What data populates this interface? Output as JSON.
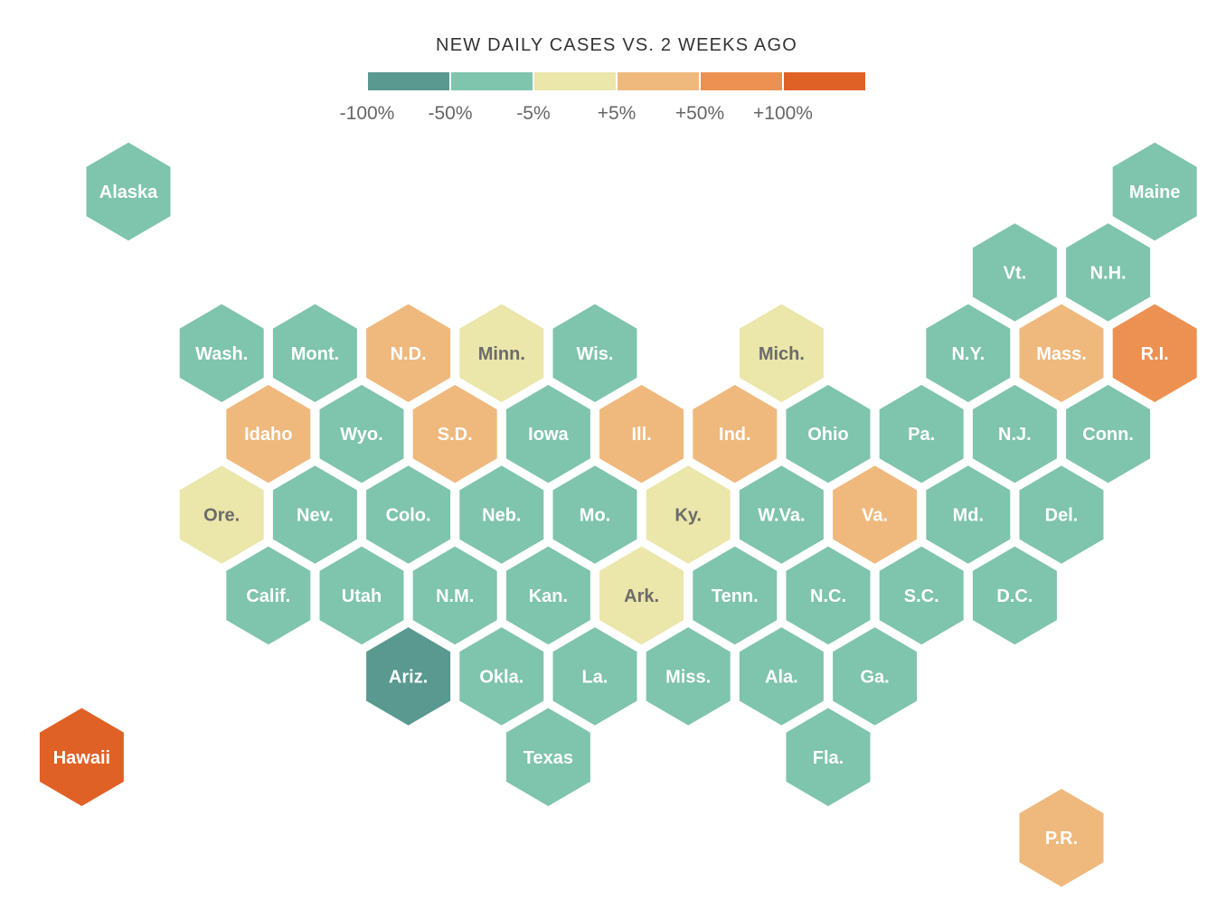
{
  "title": "NEW DAILY CASES VS. 2 WEEKS AGO",
  "colors": {
    "-100%": "#59998f",
    "-50%": "#7fc4ad",
    "-5%": "#ebe6a9",
    "+5%": "#efb97d",
    "+50%": "#ec9152",
    "+100%": "#e06126"
  },
  "legend": {
    "labels": [
      "-100%",
      "-50%",
      "-5%",
      "+5%",
      "+50%",
      "+100%"
    ],
    "swatches": [
      "-100%",
      "-50%",
      "-5%",
      "+5%",
      "+50%",
      "+100%"
    ]
  },
  "states": [
    {
      "label": "Alaska",
      "row": 0,
      "col": 0,
      "bin": "-50%"
    },
    {
      "label": "Maine",
      "row": 0,
      "col": 11,
      "bin": "-50%"
    },
    {
      "label": "Vt.",
      "row": 1,
      "col": 9.5,
      "bin": "-50%"
    },
    {
      "label": "N.H.",
      "row": 1,
      "col": 10.5,
      "bin": "-50%"
    },
    {
      "label": "Wash.",
      "row": 2,
      "col": 1,
      "bin": "-50%"
    },
    {
      "label": "Mont.",
      "row": 2,
      "col": 2,
      "bin": "-50%"
    },
    {
      "label": "N.D.",
      "row": 2,
      "col": 3,
      "bin": "+5%"
    },
    {
      "label": "Minn.",
      "row": 2,
      "col": 4,
      "bin": "-5%"
    },
    {
      "label": "Wis.",
      "row": 2,
      "col": 5,
      "bin": "-50%"
    },
    {
      "label": "Mich.",
      "row": 2,
      "col": 7,
      "bin": "-5%"
    },
    {
      "label": "N.Y.",
      "row": 2,
      "col": 9,
      "bin": "-50%"
    },
    {
      "label": "Mass.",
      "row": 2,
      "col": 10,
      "bin": "+5%"
    },
    {
      "label": "R.I.",
      "row": 2,
      "col": 11,
      "bin": "+50%"
    },
    {
      "label": "Idaho",
      "row": 3,
      "col": 1.5,
      "bin": "+5%"
    },
    {
      "label": "Wyo.",
      "row": 3,
      "col": 2.5,
      "bin": "-50%"
    },
    {
      "label": "S.D.",
      "row": 3,
      "col": 3.5,
      "bin": "+5%"
    },
    {
      "label": "Iowa",
      "row": 3,
      "col": 4.5,
      "bin": "-50%"
    },
    {
      "label": "Ill.",
      "row": 3,
      "col": 5.5,
      "bin": "+5%"
    },
    {
      "label": "Ind.",
      "row": 3,
      "col": 6.5,
      "bin": "+5%"
    },
    {
      "label": "Ohio",
      "row": 3,
      "col": 7.5,
      "bin": "-50%"
    },
    {
      "label": "Pa.",
      "row": 3,
      "col": 8.5,
      "bin": "-50%"
    },
    {
      "label": "N.J.",
      "row": 3,
      "col": 9.5,
      "bin": "-50%"
    },
    {
      "label": "Conn.",
      "row": 3,
      "col": 10.5,
      "bin": "-50%"
    },
    {
      "label": "Ore.",
      "row": 4,
      "col": 1,
      "bin": "-5%"
    },
    {
      "label": "Nev.",
      "row": 4,
      "col": 2,
      "bin": "-50%"
    },
    {
      "label": "Colo.",
      "row": 4,
      "col": 3,
      "bin": "-50%"
    },
    {
      "label": "Neb.",
      "row": 4,
      "col": 4,
      "bin": "-50%"
    },
    {
      "label": "Mo.",
      "row": 4,
      "col": 5,
      "bin": "-50%"
    },
    {
      "label": "Ky.",
      "row": 4,
      "col": 6,
      "bin": "-5%"
    },
    {
      "label": "W.Va.",
      "row": 4,
      "col": 7,
      "bin": "-50%"
    },
    {
      "label": "Va.",
      "row": 4,
      "col": 8,
      "bin": "+5%"
    },
    {
      "label": "Md.",
      "row": 4,
      "col": 9,
      "bin": "-50%"
    },
    {
      "label": "Del.",
      "row": 4,
      "col": 10,
      "bin": "-50%"
    },
    {
      "label": "Calif.",
      "row": 5,
      "col": 1.5,
      "bin": "-50%"
    },
    {
      "label": "Utah",
      "row": 5,
      "col": 2.5,
      "bin": "-50%"
    },
    {
      "label": "N.M.",
      "row": 5,
      "col": 3.5,
      "bin": "-50%"
    },
    {
      "label": "Kan.",
      "row": 5,
      "col": 4.5,
      "bin": "-50%"
    },
    {
      "label": "Ark.",
      "row": 5,
      "col": 5.5,
      "bin": "-5%"
    },
    {
      "label": "Tenn.",
      "row": 5,
      "col": 6.5,
      "bin": "-50%"
    },
    {
      "label": "N.C.",
      "row": 5,
      "col": 7.5,
      "bin": "-50%"
    },
    {
      "label": "S.C.",
      "row": 5,
      "col": 8.5,
      "bin": "-50%"
    },
    {
      "label": "D.C.",
      "row": 5,
      "col": 9.5,
      "bin": "-50%"
    },
    {
      "label": "Ariz.",
      "row": 6,
      "col": 3,
      "bin": "-100%"
    },
    {
      "label": "Okla.",
      "row": 6,
      "col": 4,
      "bin": "-50%"
    },
    {
      "label": "La.",
      "row": 6,
      "col": 5,
      "bin": "-50%"
    },
    {
      "label": "Miss.",
      "row": 6,
      "col": 6,
      "bin": "-50%"
    },
    {
      "label": "Ala.",
      "row": 6,
      "col": 7,
      "bin": "-50%"
    },
    {
      "label": "Ga.",
      "row": 6,
      "col": 8,
      "bin": "-50%"
    },
    {
      "label": "Hawaii",
      "row": 7,
      "col": -0.5,
      "bin": "+100%"
    },
    {
      "label": "Texas",
      "row": 7,
      "col": 4.5,
      "bin": "-50%"
    },
    {
      "label": "Fla.",
      "row": 7,
      "col": 7.5,
      "bin": "-50%"
    },
    {
      "label": "P.R.",
      "row": 8,
      "col": 10,
      "bin": "+5%"
    }
  ]
}
